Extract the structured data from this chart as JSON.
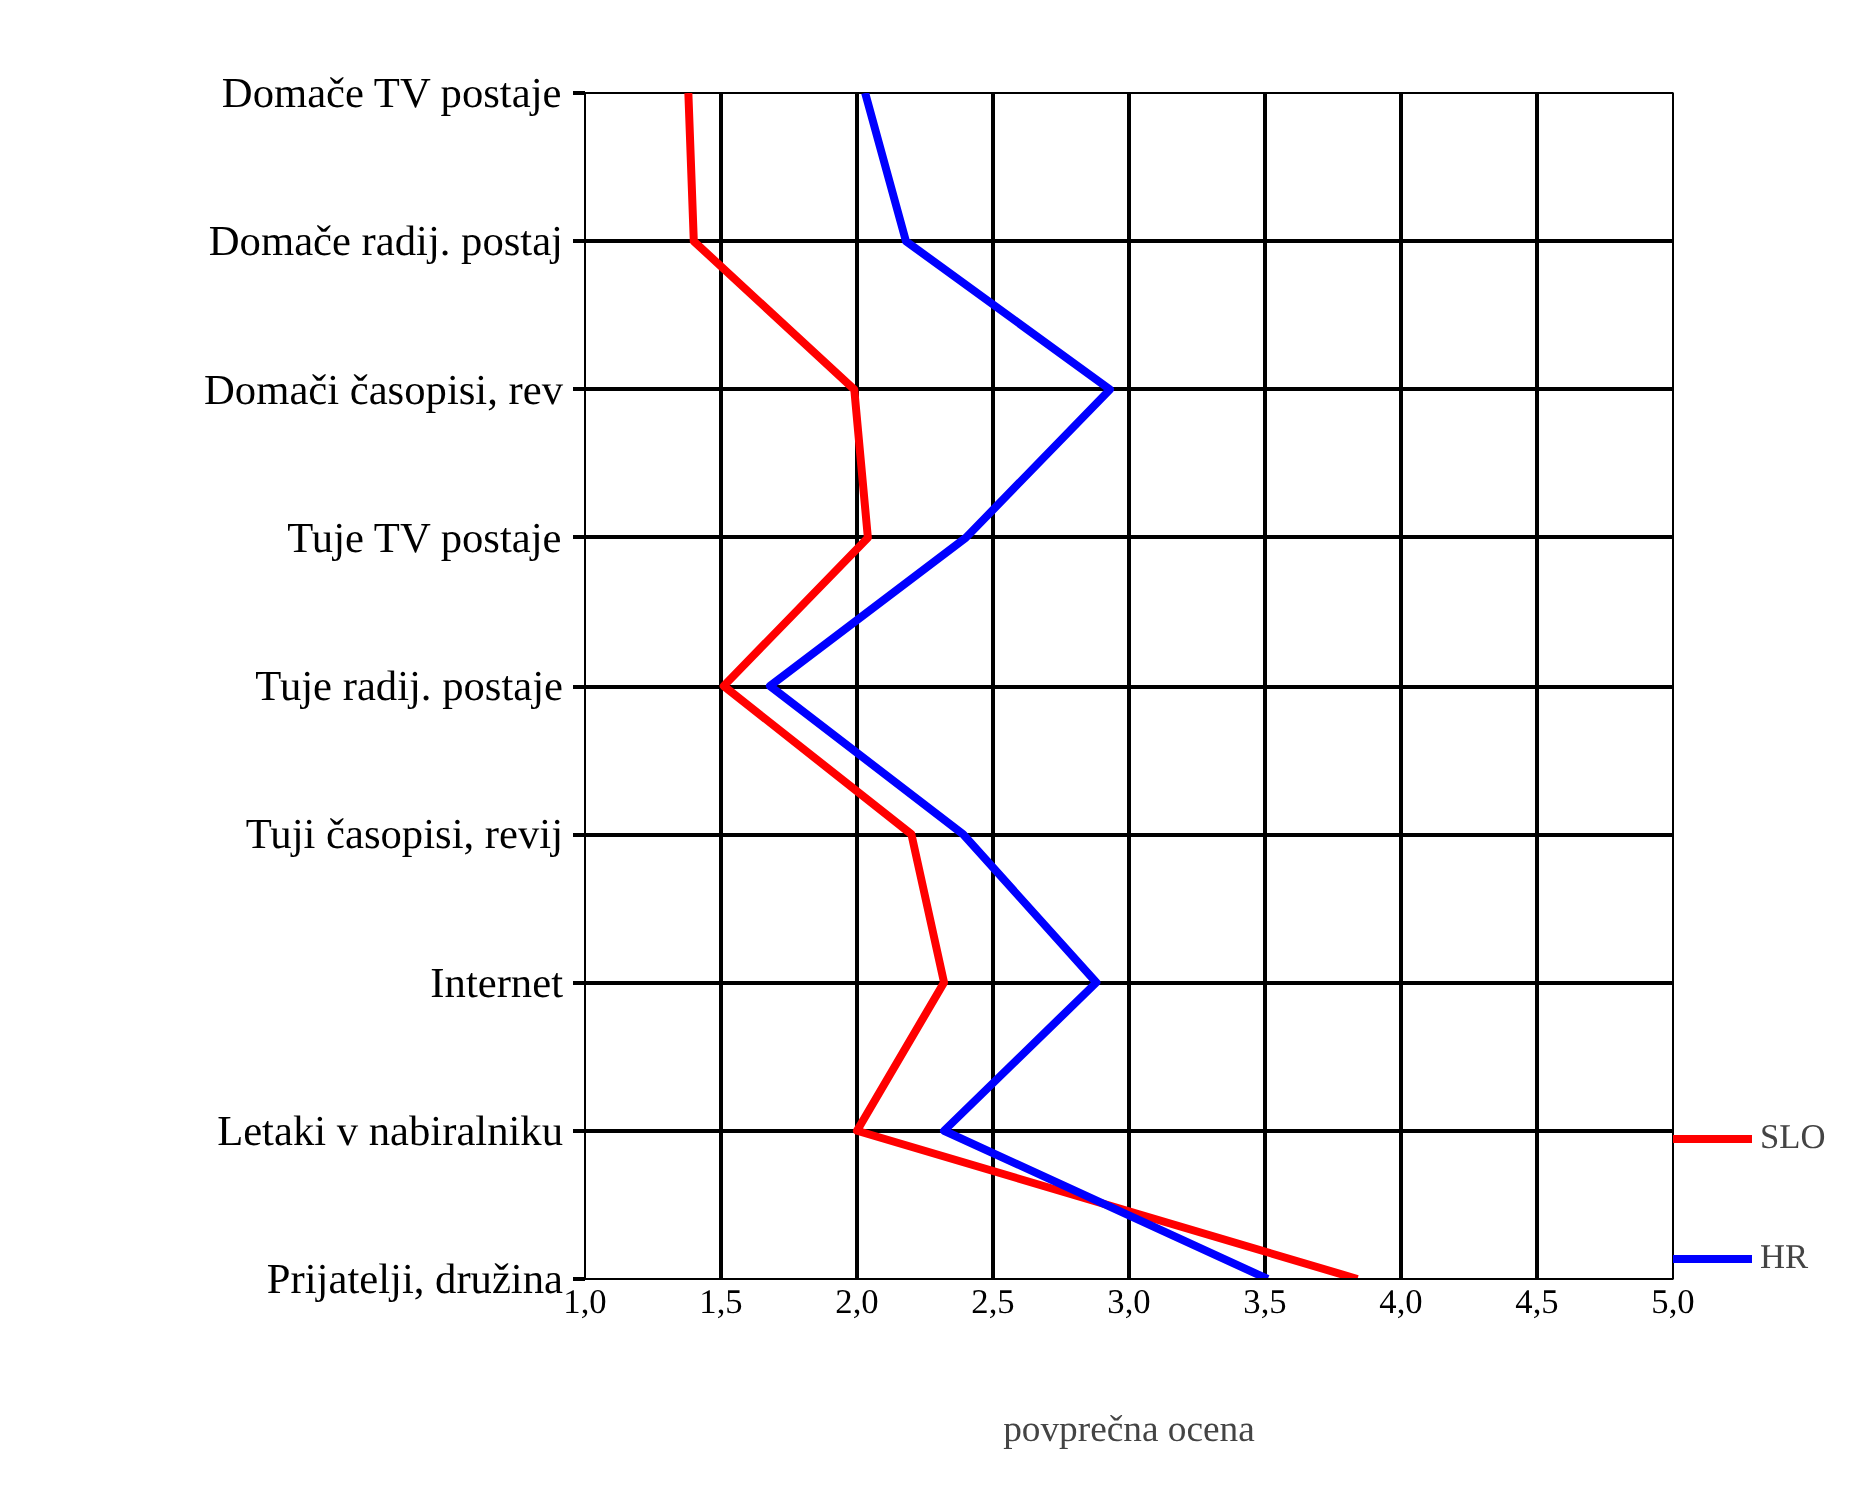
{
  "chart_data": {
    "type": "line",
    "orientation": "horizontal",
    "xlabel": "povprečna ocena",
    "categories": [
      "Domače TV postaje",
      "Domače radij. postaj",
      "Domači časopisi, rev",
      "Tuje TV postaje",
      "Tuje radij. postaje",
      "Tuji časopisi, revij",
      "Internet",
      "Letaki v nabiralniku",
      "Prijatelji, družina"
    ],
    "series": [
      {
        "name": "SLO",
        "color": "#ff0000",
        "values": [
          1.38,
          1.4,
          1.99,
          2.04,
          1.51,
          2.2,
          2.32,
          2.0,
          3.84
        ]
      },
      {
        "name": "HR",
        "color": "#0000ff",
        "values": [
          2.03,
          2.18,
          2.93,
          2.4,
          1.68,
          2.39,
          2.88,
          2.32,
          3.51
        ]
      }
    ],
    "xlim": [
      1,
      5
    ],
    "xticks": [
      {
        "value": 1,
        "label": "1,0"
      },
      {
        "value": 1.5,
        "label": "1,5"
      },
      {
        "value": 2,
        "label": "2,0"
      },
      {
        "value": 2.5,
        "label": "2,5"
      },
      {
        "value": 3,
        "label": "3,0"
      },
      {
        "value": 3.5,
        "label": "3,5"
      },
      {
        "value": 4,
        "label": "4,0"
      },
      {
        "value": 4.5,
        "label": "4,5"
      },
      {
        "value": 5,
        "label": "5,0"
      }
    ],
    "grid": true,
    "legend": "right",
    "line_style": "solid"
  }
}
